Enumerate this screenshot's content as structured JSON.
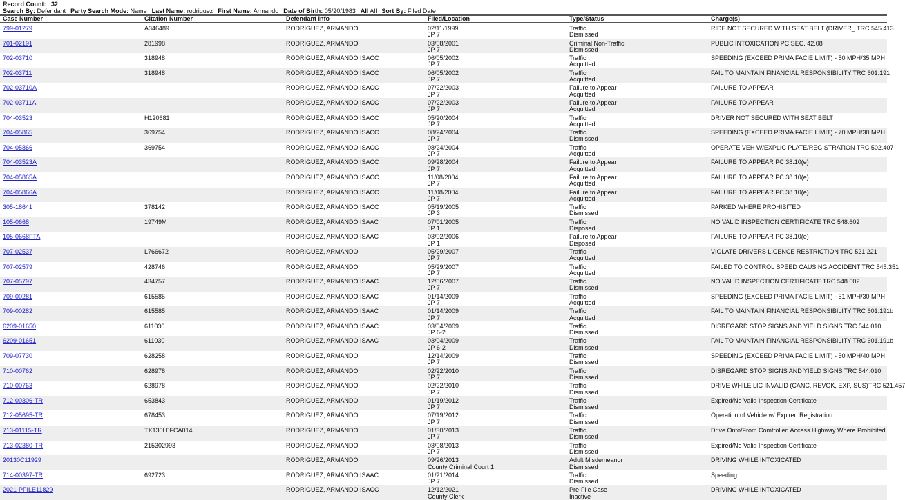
{
  "header": {
    "record_count_label": "Record Count:",
    "record_count": "32",
    "filters": [
      {
        "label": "Search By:",
        "value": "Defendant"
      },
      {
        "label": "Party Search Mode:",
        "value": "Name"
      },
      {
        "label": "Last Name:",
        "value": "rodriguez"
      },
      {
        "label": "First Name:",
        "value": "Armando"
      },
      {
        "label": "Date of Birth:",
        "value": "05/20/1983"
      },
      {
        "label": "All",
        "value": "All"
      },
      {
        "label": "Sort By:",
        "value": "Filed Date"
      }
    ]
  },
  "columns": [
    "Case Number",
    "Citation Number",
    "Defendant Info",
    "Filed/Location",
    "Type/Status",
    "Charge(s)"
  ],
  "colors": {
    "link": "#2222cc",
    "alt_row": "#eeeeee"
  },
  "rows": [
    {
      "case": "799-01279",
      "citation": "A346489",
      "defendant": "RODRIGUEZ, ARMANDO",
      "filed": "02/11/1999",
      "location": "JP 7",
      "type": "Traffic",
      "status": "Dismissed",
      "charge": "RIDE NOT SECURED WITH SEAT BELT (DRIVER_ TRC 545.413"
    },
    {
      "case": "701-02191",
      "citation": "281998",
      "defendant": "RODRIGUEZ, ARMANDO",
      "filed": "03/08/2001",
      "location": "JP 7",
      "type": "Criminal Non-Traffic",
      "status": "Dismissed",
      "charge": "PUBLIC INTOXICATION PC SEC. 42.08"
    },
    {
      "case": "702-03710",
      "citation": "318948",
      "defendant": "RODRIGUEZ, ARMANDO ISACC",
      "filed": "06/05/2002",
      "location": "JP 7",
      "type": "Traffic",
      "status": "Acquitted",
      "charge": "SPEEDING (EXCEED PRIMA FACIE LIMIT) - 50 MPH/35 MPH"
    },
    {
      "case": "702-03711",
      "citation": "318948",
      "defendant": "RODRIGUEZ, ARMANDO ISACC",
      "filed": "06/05/2002",
      "location": "JP 7",
      "type": "Traffic",
      "status": "Acquitted",
      "charge": "FAIL TO MAINTAIN FINANCIAL RESPONSIBILITY TRC 601.191"
    },
    {
      "case": "702-03710A",
      "citation": "",
      "defendant": "RODRIGUEZ, ARMANDO ISACC",
      "filed": "07/22/2003",
      "location": "JP 7",
      "type": "Failure to Appear",
      "status": "Acquitted",
      "charge": "FAILURE TO APPEAR"
    },
    {
      "case": "702-03711A",
      "citation": "",
      "defendant": "RODRIGUEZ, ARMANDO ISACC",
      "filed": "07/22/2003",
      "location": "JP 7",
      "type": "Failure to Appear",
      "status": "Acquitted",
      "charge": "FAILURE TO APPEAR"
    },
    {
      "case": "704-03523",
      "citation": "H120681",
      "defendant": "RODRIGUEZ, ARMANDO ISACC",
      "filed": "05/20/2004",
      "location": "JP 7",
      "type": "Traffic",
      "status": "Acquitted",
      "charge": "DRIVER NOT SECURED WITH SEAT BELT"
    },
    {
      "case": "704-05865",
      "citation": "369754",
      "defendant": "RODRIGUEZ, ARMANDO ISACC",
      "filed": "08/24/2004",
      "location": "JP 7",
      "type": "Traffic",
      "status": "Dismissed",
      "charge": "SPEEDING (EXCEED PRIMA FACIE LIMIT) - 70 MPH/30 MPH"
    },
    {
      "case": "704-05866",
      "citation": "369754",
      "defendant": "RODRIGUEZ, ARMANDO ISACC",
      "filed": "08/24/2004",
      "location": "JP 7",
      "type": "Traffic",
      "status": "Acquitted",
      "charge": "OPERATE VEH W/EXPLIC PLATE/REGISTRATION TRC 502.407"
    },
    {
      "case": "704-03523A",
      "citation": "",
      "defendant": "RODRIGUEZ, ARMANDO ISACC",
      "filed": "09/28/2004",
      "location": "JP 7",
      "type": "Failure to Appear",
      "status": "Acquitted",
      "charge": "FAILURE TO APPEAR PC 38.10(e)"
    },
    {
      "case": "704-05865A",
      "citation": "",
      "defendant": "RODRIGUEZ, ARMANDO ISACC",
      "filed": "11/08/2004",
      "location": "JP 7",
      "type": "Failure to Appear",
      "status": "Acquitted",
      "charge": "FAILURE TO APPEAR PC 38.10(e)"
    },
    {
      "case": "704-05866A",
      "citation": "",
      "defendant": "RODRIGUEZ, ARMANDO ISACC",
      "filed": "11/08/2004",
      "location": "JP 7",
      "type": "Failure to Appear",
      "status": "Acquitted",
      "charge": "FAILURE TO APPEAR PC 38.10(e)"
    },
    {
      "case": "305-18641",
      "citation": "378142",
      "defendant": "RODRIGUEZ, ARMANDO ISACC",
      "filed": "05/19/2005",
      "location": "JP 3",
      "type": "Traffic",
      "status": "Dismissed",
      "charge": "PARKED WHERE PROHIBITED"
    },
    {
      "case": "105-0668",
      "citation": "19749M",
      "defendant": "RODRIGUEZ, ARMANDO ISAAC",
      "filed": "07/01/2005",
      "location": "JP 1",
      "type": "Traffic",
      "status": "Disposed",
      "charge": "NO VALID INSPECTION CERTIFICATE TRC 548.602"
    },
    {
      "case": "105-0668FTA",
      "citation": "",
      "defendant": "RODRIGUEZ, ARMANDO ISAAC",
      "filed": "03/02/2006",
      "location": "JP 1",
      "type": "Failure to Appear",
      "status": "Disposed",
      "charge": "FAILURE TO APPEAR PC 38.10(e)"
    },
    {
      "case": "707-02537",
      "citation": "L766672",
      "defendant": "RODRIGUEZ, ARMANDO",
      "filed": "05/29/2007",
      "location": "JP 7",
      "type": "Traffic",
      "status": "Acquitted",
      "charge": "VIOLATE DRIVERS LICENCE RESTRICTION TRC 521.221"
    },
    {
      "case": "707-02579",
      "citation": "428746",
      "defendant": "RODRIGUEZ, ARMANDO",
      "filed": "05/29/2007",
      "location": "JP 7",
      "type": "Traffic",
      "status": "Acquitted",
      "charge": "FAILED TO CONTROL SPEED CAUSING ACCIDENT TRC 545.351"
    },
    {
      "case": "707-05797",
      "citation": "434757",
      "defendant": "RODRIGUEZ, ARMANDO ISAAC",
      "filed": "12/06/2007",
      "location": "JP 7",
      "type": "Traffic",
      "status": "Dismissed",
      "charge": "NO VALID INSPECTION CERTIFICATE TRC 548.602"
    },
    {
      "case": "709-00281",
      "citation": "615585",
      "defendant": "RODRIGUEZ, ARMANDO ISAAC",
      "filed": "01/14/2009",
      "location": "JP 7",
      "type": "Traffic",
      "status": "Acquitted",
      "charge": "SPEEDING (EXCEED PRIMA FACIE LIMIT) - 51 MPH/30 MPH"
    },
    {
      "case": "709-00282",
      "citation": "615585",
      "defendant": "RODRIGUEZ, ARMANDO ISAAC",
      "filed": "01/14/2009",
      "location": "JP 7",
      "type": "Traffic",
      "status": "Acquitted",
      "charge": "FAIL TO MAINTAIN FINANCIAL RESPONSIBILITY TRC 601.191b"
    },
    {
      "case": "6209-01650",
      "citation": "611030",
      "defendant": "RODRIGUEZ, ARMANDO ISAAC",
      "filed": "03/04/2009",
      "location": "JP 6-2",
      "type": "Traffic",
      "status": "Dismissed",
      "charge": "DISREGARD STOP SIGNS AND YIELD SIGNS TRC 544.010"
    },
    {
      "case": "6209-01651",
      "citation": "611030",
      "defendant": "RODRIGUEZ, ARMANDO ISAAC",
      "filed": "03/04/2009",
      "location": "JP 6-2",
      "type": "Traffic",
      "status": "Dismissed",
      "charge": "FAIL TO MAINTAIN FINANCIAL RESPONSIBILITY TRC 601.191b"
    },
    {
      "case": "709-07730",
      "citation": "628258",
      "defendant": "RODRIGUEZ, ARMANDO",
      "filed": "12/14/2009",
      "location": "JP 7",
      "type": "Traffic",
      "status": "Dismissed",
      "charge": "SPEEDING (EXCEED PRIMA FACIE LIMIT) - 50 MPH/40 MPH"
    },
    {
      "case": "710-00762",
      "citation": "628978",
      "defendant": "RODRIGUEZ, ARMANDO",
      "filed": "02/22/2010",
      "location": "JP 7",
      "type": "Traffic",
      "status": "Dismissed",
      "charge": "DISREGARD STOP SIGNS AND YIELD SIGNS TRC 544.010"
    },
    {
      "case": "710-00763",
      "citation": "628978",
      "defendant": "RODRIGUEZ, ARMANDO",
      "filed": "02/22/2010",
      "location": "JP 7",
      "type": "Traffic",
      "status": "Dismissed",
      "charge": "DRIVE WHILE LIC INVALID (CANC, REVOK, EXP, SUS)TRC 521.457"
    },
    {
      "case": "712-00306-TR",
      "citation": "653843",
      "defendant": "RODRIGUEZ, ARMANDO",
      "filed": "01/19/2012",
      "location": "JP 7",
      "type": "Traffic",
      "status": "Dismissed",
      "charge": "Expired/No Valid Inspection Certificate"
    },
    {
      "case": "712-05695-TR",
      "citation": "678453",
      "defendant": "RODRIGUEZ, ARMANDO",
      "filed": "07/19/2012",
      "location": "JP 7",
      "type": "Traffic",
      "status": "Dismissed",
      "charge": "Operation of Vehicle w/ Expired Registration"
    },
    {
      "case": "713-01115-TR",
      "citation": "TX130L0FCA014",
      "defendant": "RODRIGUEZ, ARMANDO",
      "filed": "01/30/2013",
      "location": "JP 7",
      "type": "Traffic",
      "status": "Dismissed",
      "charge": "Drive Onto/From Comtrolled Access Highway Where Prohibited"
    },
    {
      "case": "713-02380-TR",
      "citation": "215302993",
      "defendant": "RODRIGUEZ, ARMANDO",
      "filed": "03/08/2013",
      "location": "JP 7",
      "type": "Traffic",
      "status": "Dismissed",
      "charge": "Expired/No Valid Inspection Certificate"
    },
    {
      "case": "20130C11929",
      "citation": "",
      "defendant": "RODRIGUEZ, ARMANDO",
      "filed": "09/26/2013",
      "location": "County Criminal Court 1",
      "type": "Adult Misdemeanor",
      "status": "Dismissed",
      "charge": "DRIVING WHILE INTOXICATED"
    },
    {
      "case": "714-00397-TR",
      "citation": "692723",
      "defendant": "RODRIGUEZ, ARMANDO ISAAC",
      "filed": "01/21/2014",
      "location": "JP 7",
      "type": "Traffic",
      "status": "Dismissed",
      "charge": "Speeding"
    },
    {
      "case": "2021-PFILE11829",
      "citation": "",
      "defendant": "RODRIGUEZ, ARMANDO ISACC",
      "filed": "12/12/2021",
      "location": "County Clerk",
      "type": "Pre-File Case",
      "status": "Inactive",
      "charge": "DRIVING WHILE INTOXICATED"
    }
  ]
}
